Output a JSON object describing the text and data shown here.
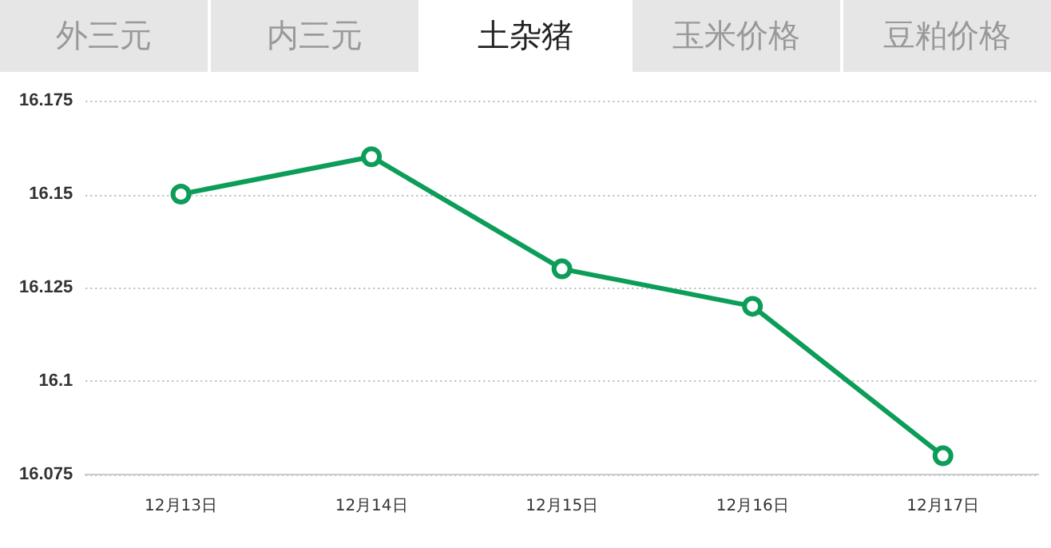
{
  "chart_data": {
    "type": "line",
    "annotations": [
      "外三元",
      "内三元",
      "土杂猪",
      "玉米价格",
      "豆粕价格"
    ],
    "categories": [
      "12月13日",
      "12月14日",
      "12月15日",
      "12月16日",
      "12月17日"
    ],
    "series": [
      {
        "color": "#0c9d58",
        "values": [
          16.15,
          16.16,
          16.13,
          16.12,
          16.08
        ]
      }
    ],
    "ylim": [
      16.075,
      16.175
    ],
    "yticks": [
      16.075,
      16.1,
      16.125,
      16.15,
      16.175
    ],
    "grid": "y",
    "marker": "circle",
    "line_style": "solid",
    "legend": false
  }
}
